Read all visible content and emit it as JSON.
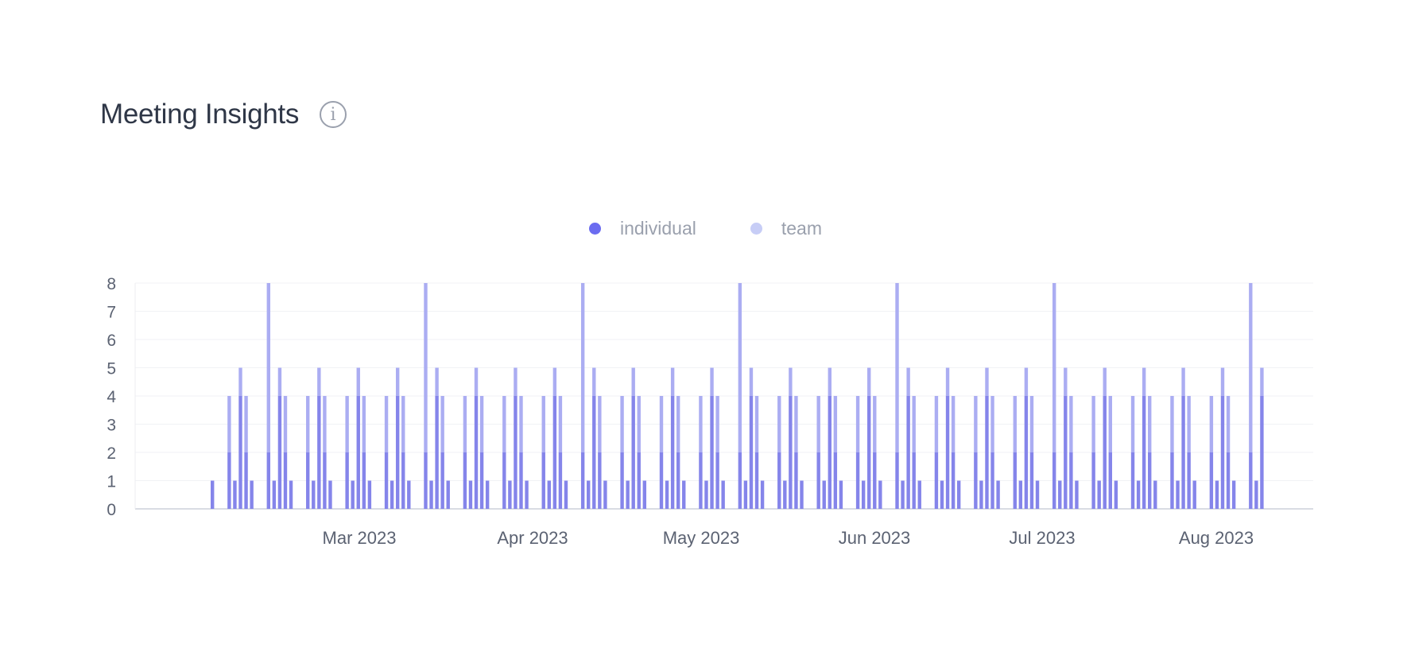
{
  "header": {
    "title": "Meeting Insights",
    "info_icon": "info-icon"
  },
  "colors": {
    "individual": "#6b6cf0",
    "individual_bar": "#8585ea",
    "team": "#c7cdf6",
    "team_bar": "#abadf2"
  },
  "chart_data": {
    "type": "bar",
    "stacked": true,
    "x_axis": "date (daily, weekdays)",
    "ylim": [
      0,
      8
    ],
    "y_ticks": [
      0,
      1,
      2,
      3,
      4,
      5,
      6,
      7,
      8
    ],
    "x_tick_labels": [
      "Mar 2023",
      "Apr 2023",
      "May 2023",
      "Jun 2023",
      "Jul 2023",
      "Aug 2023"
    ],
    "legend_position": "top-center",
    "grid": true,
    "series": [
      {
        "name": "individual",
        "values": [
          1,
          2,
          1,
          4,
          2,
          1,
          2,
          1,
          4,
          2,
          1,
          2,
          1,
          4,
          2,
          1,
          2,
          1,
          4,
          2,
          1,
          2,
          1,
          4,
          2,
          1,
          2,
          1,
          4,
          2,
          1,
          2,
          1,
          4,
          2,
          1,
          2,
          1,
          4,
          2,
          1,
          2,
          1,
          4,
          2,
          1,
          2,
          1,
          4,
          2,
          1,
          2,
          1,
          4,
          2,
          1,
          2,
          1,
          4,
          2,
          1,
          2,
          1,
          4,
          2,
          1,
          2,
          1,
          4,
          2,
          1,
          2,
          1,
          4,
          2,
          1,
          2,
          1,
          4,
          2,
          1,
          2,
          1,
          4,
          2,
          1,
          2,
          1,
          4,
          2,
          1,
          2,
          1,
          4,
          2,
          1,
          2,
          1,
          4,
          2,
          1,
          2,
          1,
          4,
          2,
          1,
          2,
          1,
          4,
          2,
          1,
          2,
          1,
          4,
          2,
          1,
          2,
          1,
          4,
          2,
          1,
          2,
          1,
          4,
          2,
          1,
          2,
          1,
          4,
          2,
          1,
          2,
          1,
          4
        ]
      },
      {
        "name": "team",
        "values": [
          0,
          2,
          0,
          1,
          2,
          0,
          6,
          0,
          1,
          2,
          0,
          2,
          0,
          1,
          2,
          0,
          2,
          0,
          1,
          2,
          0,
          2,
          0,
          1,
          2,
          0,
          6,
          0,
          1,
          2,
          0,
          2,
          0,
          1,
          2,
          0,
          2,
          0,
          1,
          2,
          0,
          2,
          0,
          1,
          2,
          0,
          6,
          0,
          1,
          2,
          0,
          2,
          0,
          1,
          2,
          0,
          2,
          0,
          1,
          2,
          0,
          2,
          0,
          1,
          2,
          0,
          6,
          0,
          1,
          2,
          0,
          2,
          0,
          1,
          2,
          0,
          2,
          0,
          1,
          2,
          0,
          2,
          0,
          1,
          2,
          0,
          6,
          0,
          1,
          2,
          0,
          2,
          0,
          1,
          2,
          0,
          2,
          0,
          1,
          2,
          0,
          2,
          0,
          1,
          2,
          0,
          6,
          0,
          1,
          2,
          0,
          2,
          0,
          1,
          2,
          0,
          2,
          0,
          1,
          2,
          0,
          2,
          0,
          1,
          2,
          0,
          2,
          0,
          1,
          2,
          0,
          6,
          0,
          1
        ]
      }
    ]
  }
}
